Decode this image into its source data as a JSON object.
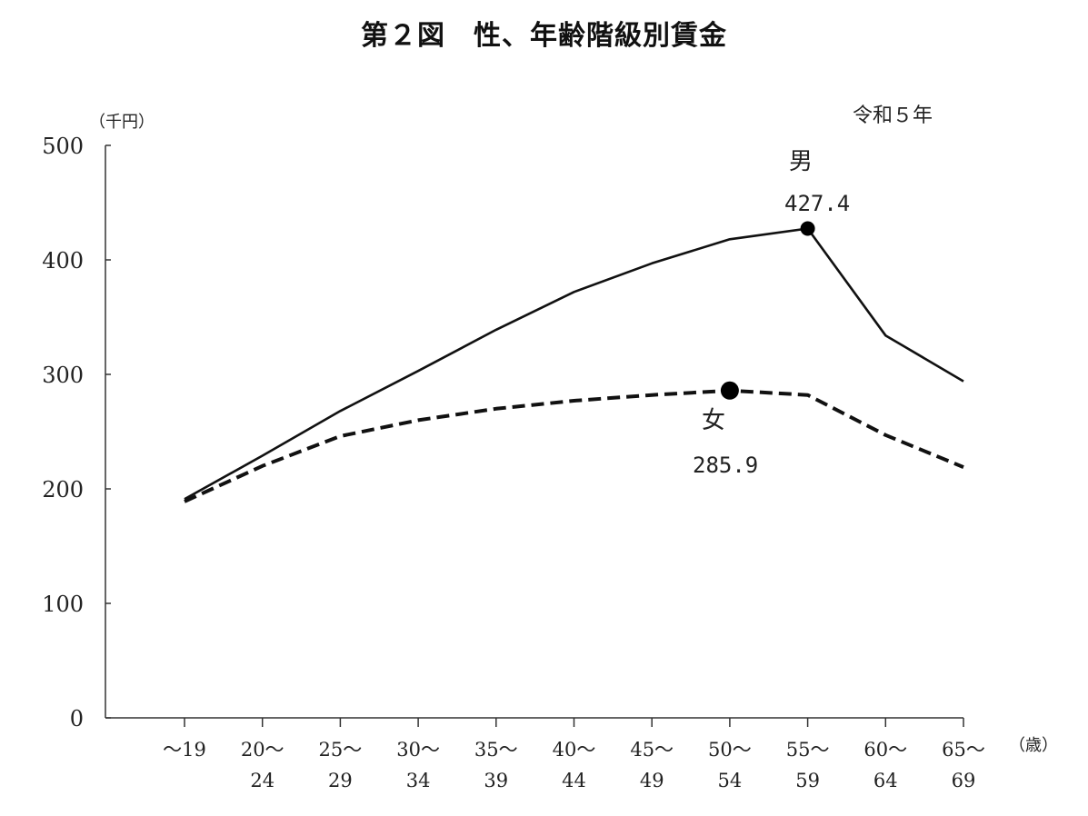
{
  "title": "第２図　性、年齢階級別賃金",
  "note": "令和５年",
  "chart_data": {
    "type": "line",
    "categories": [
      [
        "～19",
        ""
      ],
      [
        "20～",
        "24"
      ],
      [
        "25～",
        "29"
      ],
      [
        "30～",
        "34"
      ],
      [
        "35～",
        "39"
      ],
      [
        "40～",
        "44"
      ],
      [
        "45～",
        "49"
      ],
      [
        "50～",
        "54"
      ],
      [
        "55～",
        "59"
      ],
      [
        "60～",
        "64"
      ],
      [
        "65～",
        "69"
      ]
    ],
    "yunit": "（千円）",
    "xunit": "（歳）",
    "ylim": [
      0,
      500
    ],
    "yticks": [
      0,
      100,
      200,
      300,
      400,
      500
    ],
    "grid": false,
    "series": [
      {
        "name": "男",
        "style": "solid",
        "values": [
          191,
          229,
          268,
          303,
          339,
          372,
          397,
          418,
          427.4,
          334,
          294
        ],
        "peak_index": 8,
        "peak_label": "427.4"
      },
      {
        "name": "女",
        "style": "dashed",
        "values": [
          189,
          220,
          246,
          260,
          270,
          277,
          282,
          285.9,
          282,
          247,
          219
        ],
        "peak_index": 7,
        "peak_label": "285.9"
      }
    ]
  }
}
